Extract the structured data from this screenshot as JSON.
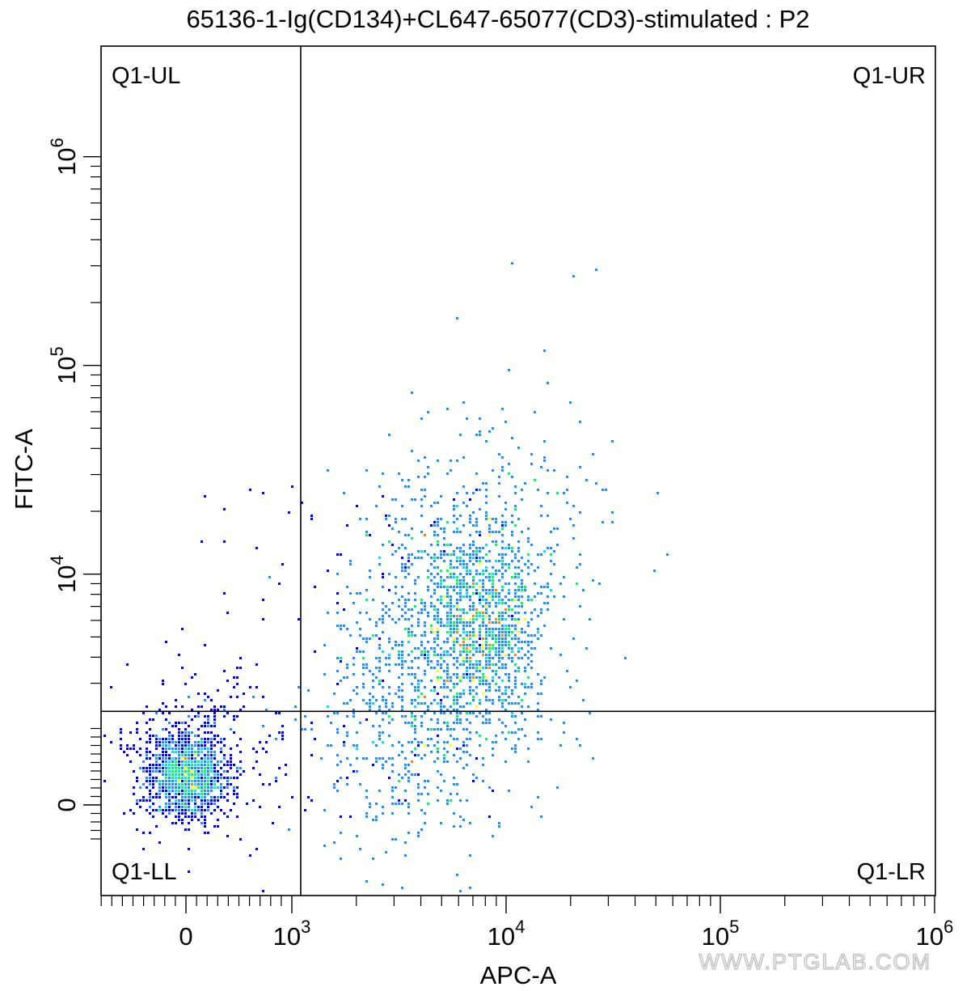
{
  "chart_data": {
    "type": "scatter",
    "title": "65136-1-Ig(CD134)+CL647-65077(CD3)-stimulated : P2",
    "xlabel": "APC-A",
    "ylabel": "FITC-A",
    "x_scale": "biexponential",
    "y_scale": "biexponential",
    "x_ticks": [
      {
        "value": 0,
        "base": "0",
        "exp": ""
      },
      {
        "value": 1000,
        "base": "10",
        "exp": "3"
      },
      {
        "value": 10000,
        "base": "10",
        "exp": "4"
      },
      {
        "value": 100000,
        "base": "10",
        "exp": "5"
      },
      {
        "value": 1000000,
        "base": "10",
        "exp": "6"
      }
    ],
    "y_ticks": [
      {
        "value": 0,
        "base": "0",
        "exp": ""
      },
      {
        "value": 10000,
        "base": "10",
        "exp": "4"
      },
      {
        "value": 100000,
        "base": "10",
        "exp": "5"
      },
      {
        "value": 1000000,
        "base": "10",
        "exp": "6"
      }
    ],
    "quadrant_gate": {
      "x": 1100,
      "y": 2200
    },
    "quadrant_labels": {
      "ul": "Q1-UL",
      "ur": "Q1-UR",
      "ll": "Q1-LL",
      "lr": "Q1-LR"
    },
    "populations": [
      {
        "name": "",
        "x_center": 0,
        "y_center": 0,
        "count": 1500
      },
      {
        "name": "",
        "x_center": 6500,
        "y_center": 3500,
        "count": 5200
      }
    ],
    "colormap": [
      "#0000ff",
      "#1e90ff",
      "#00e5ff",
      "#00ff66",
      "#ffff00",
      "#ff8800"
    ]
  },
  "watermark": "WWW.PTGLAB.COM"
}
